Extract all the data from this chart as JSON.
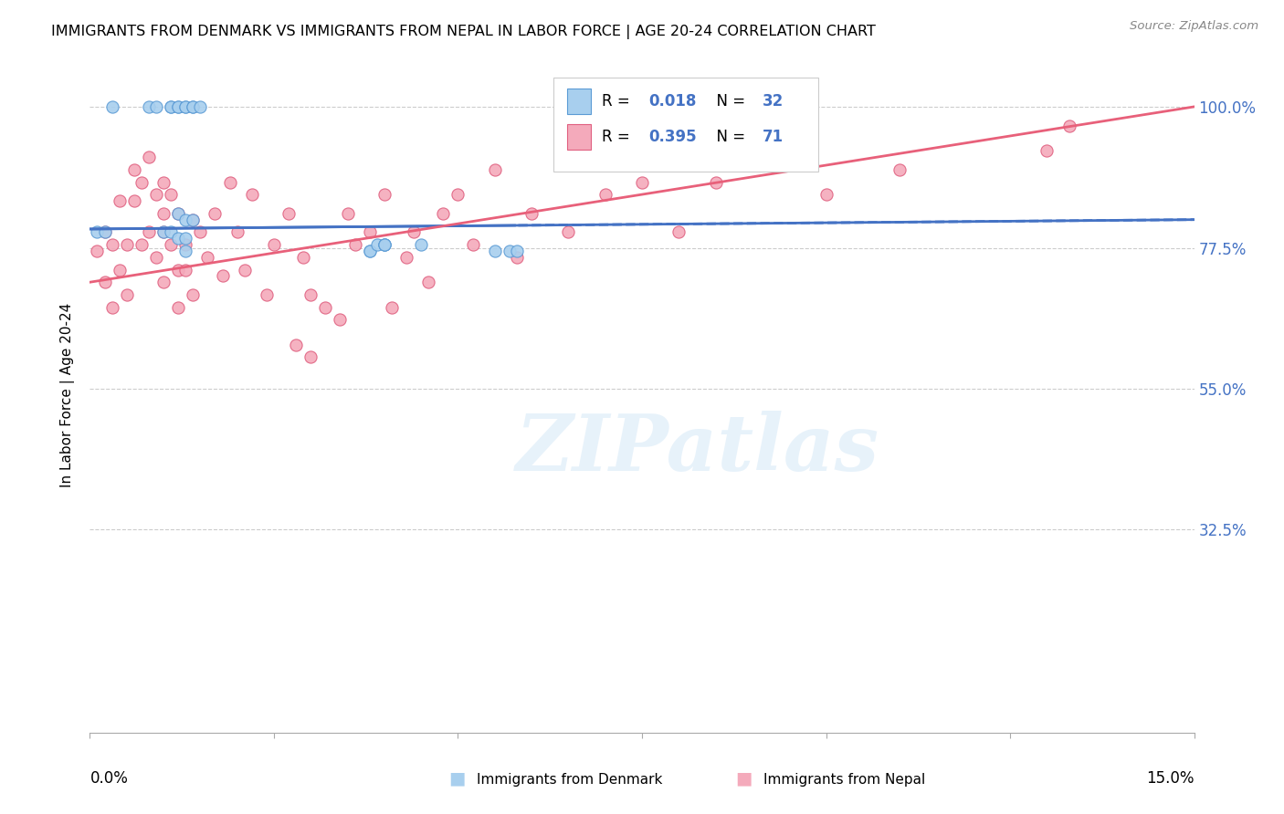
{
  "title": "IMMIGRANTS FROM DENMARK VS IMMIGRANTS FROM NEPAL IN LABOR FORCE | AGE 20-24 CORRELATION CHART",
  "source": "Source: ZipAtlas.com",
  "ylabel": "In Labor Force | Age 20-24",
  "xmin": 0.0,
  "xmax": 0.15,
  "ymin": 0.0,
  "ymax": 1.08,
  "color_denmark": "#A8CFEE",
  "color_nepal": "#F4AABB",
  "color_denmark_edge": "#5B9BD5",
  "color_nepal_edge": "#E06080",
  "color_denmark_line": "#4472C4",
  "color_nepal_line": "#E8607A",
  "color_blue_text": "#4472C4",
  "background_color": "#FFFFFF",
  "ytick_vals": [
    0.325,
    0.55,
    0.775,
    1.0
  ],
  "ytick_labels": [
    "32.5%",
    "55.0%",
    "77.5%",
    "100.0%"
  ],
  "legend_R_denmark": "0.018",
  "legend_N_denmark": "32",
  "legend_R_nepal": "0.395",
  "legend_N_nepal": "71",
  "footer_label_denmark": "Immigrants from Denmark",
  "footer_label_nepal": "Immigrants from Nepal",
  "dk_x": [
    0.001,
    0.003,
    0.008,
    0.009,
    0.011,
    0.011,
    0.012,
    0.012,
    0.013,
    0.013,
    0.014,
    0.014,
    0.015,
    0.012,
    0.013,
    0.01,
    0.013,
    0.014,
    0.011,
    0.002,
    0.038,
    0.038,
    0.039,
    0.04,
    0.04,
    0.045,
    0.012,
    0.04,
    0.057,
    0.058,
    0.013,
    0.055
  ],
  "dk_y": [
    0.8,
    1.0,
    1.0,
    1.0,
    1.0,
    1.0,
    1.0,
    1.0,
    1.0,
    1.0,
    1.0,
    1.0,
    1.0,
    0.83,
    0.77,
    0.8,
    0.82,
    0.82,
    0.8,
    0.8,
    0.77,
    0.77,
    0.78,
    0.78,
    0.78,
    0.78,
    0.79,
    0.78,
    0.77,
    0.77,
    0.79,
    0.77
  ],
  "np_x": [
    0.001,
    0.002,
    0.002,
    0.003,
    0.003,
    0.004,
    0.004,
    0.005,
    0.005,
    0.006,
    0.006,
    0.007,
    0.007,
    0.008,
    0.008,
    0.009,
    0.009,
    0.01,
    0.01,
    0.01,
    0.01,
    0.011,
    0.011,
    0.012,
    0.012,
    0.012,
    0.013,
    0.013,
    0.014,
    0.014,
    0.015,
    0.016,
    0.017,
    0.018,
    0.019,
    0.02,
    0.021,
    0.022,
    0.024,
    0.025,
    0.027,
    0.028,
    0.029,
    0.03,
    0.03,
    0.032,
    0.034,
    0.035,
    0.036,
    0.038,
    0.04,
    0.041,
    0.043,
    0.044,
    0.046,
    0.048,
    0.05,
    0.052,
    0.055,
    0.058,
    0.06,
    0.065,
    0.07,
    0.075,
    0.08,
    0.085,
    0.09,
    0.1,
    0.11,
    0.13,
    0.133
  ],
  "np_y": [
    0.77,
    0.8,
    0.72,
    0.78,
    0.68,
    0.85,
    0.74,
    0.78,
    0.7,
    0.9,
    0.85,
    0.88,
    0.78,
    0.92,
    0.8,
    0.86,
    0.76,
    0.88,
    0.83,
    0.8,
    0.72,
    0.86,
    0.78,
    0.83,
    0.74,
    0.68,
    0.78,
    0.74,
    0.82,
    0.7,
    0.8,
    0.76,
    0.83,
    0.73,
    0.88,
    0.8,
    0.74,
    0.86,
    0.7,
    0.78,
    0.83,
    0.62,
    0.76,
    0.6,
    0.7,
    0.68,
    0.66,
    0.83,
    0.78,
    0.8,
    0.86,
    0.68,
    0.76,
    0.8,
    0.72,
    0.83,
    0.86,
    0.78,
    0.9,
    0.76,
    0.83,
    0.8,
    0.86,
    0.88,
    0.8,
    0.88,
    0.93,
    0.86,
    0.9,
    0.93,
    0.97
  ]
}
